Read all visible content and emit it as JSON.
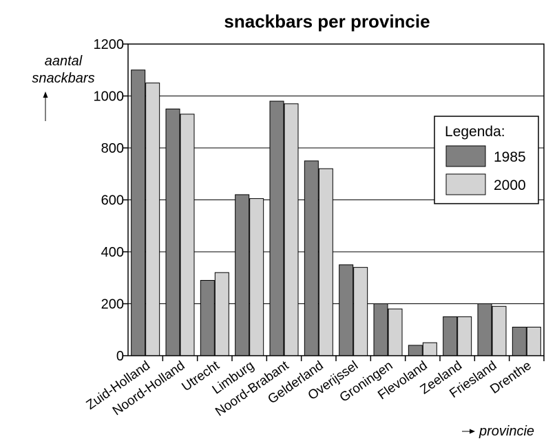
{
  "chart_data": {
    "type": "bar",
    "title": "snackbars per provincie",
    "ylabel_lines": [
      "aantal",
      "snackbars"
    ],
    "xlabel": "provincie",
    "ylim": [
      0,
      1200
    ],
    "yticks": [
      0,
      200,
      400,
      600,
      800,
      1000,
      1200
    ],
    "grid": "horizontal",
    "legend_position": "right",
    "legend_title": "Legenda:",
    "categories": [
      "Zuid-Holland",
      "Noord-Holland",
      "Utrecht",
      "Limburg",
      "Noord-Brabant",
      "Gelderland",
      "Overijssel",
      "Groningen",
      "Flevoland",
      "Zeeland",
      "Friesland",
      "Drenthe"
    ],
    "series": [
      {
        "name": "1985",
        "color": "#808080",
        "values": [
          1100,
          950,
          290,
          620,
          980,
          750,
          350,
          200,
          40,
          150,
          200,
          110
        ]
      },
      {
        "name": "2000",
        "color": "#d3d3d3",
        "values": [
          1050,
          930,
          320,
          605,
          970,
          720,
          340,
          180,
          50,
          150,
          190,
          110
        ]
      }
    ]
  }
}
